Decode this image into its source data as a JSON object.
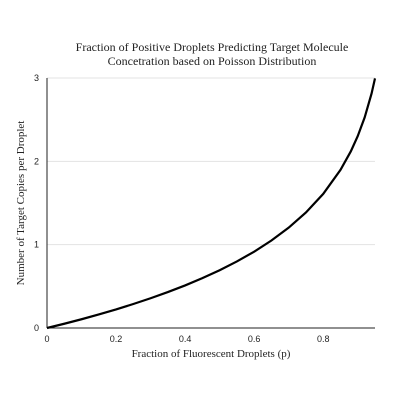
{
  "chart_data": {
    "type": "line",
    "title": [
      "Fraction of Positive Droplets Predicting Target Molecule",
      "Concetration based on Poisson Distribution"
    ],
    "xlabel": "Fraction of Fluorescent Droplets (p)",
    "ylabel": "Number of Target Copies per Droplet",
    "xlim": [
      0,
      0.95
    ],
    "ylim": [
      0,
      3
    ],
    "x_ticks": [
      0,
      0.2,
      0.4,
      0.6,
      0.8
    ],
    "x_tick_labels": [
      "0",
      "0.2",
      "0.4",
      "0.6",
      "0.8"
    ],
    "y_ticks": [
      0,
      1,
      2,
      3
    ],
    "y_tick_labels": [
      "0",
      "1",
      "2",
      "3"
    ],
    "grid": "horizontal",
    "series": [
      {
        "x": [
          0,
          0.05,
          0.1,
          0.15,
          0.2,
          0.25,
          0.3,
          0.35,
          0.4,
          0.45,
          0.5,
          0.55,
          0.6,
          0.65,
          0.7,
          0.75,
          0.8,
          0.85,
          0.88,
          0.9,
          0.92,
          0.94,
          0.95
        ],
        "y": [
          0,
          0.051,
          0.105,
          0.163,
          0.223,
          0.288,
          0.357,
          0.431,
          0.511,
          0.598,
          0.693,
          0.799,
          0.916,
          1.05,
          1.204,
          1.386,
          1.609,
          1.897,
          2.12,
          2.303,
          2.526,
          2.813,
          2.996
        ]
      }
    ]
  }
}
